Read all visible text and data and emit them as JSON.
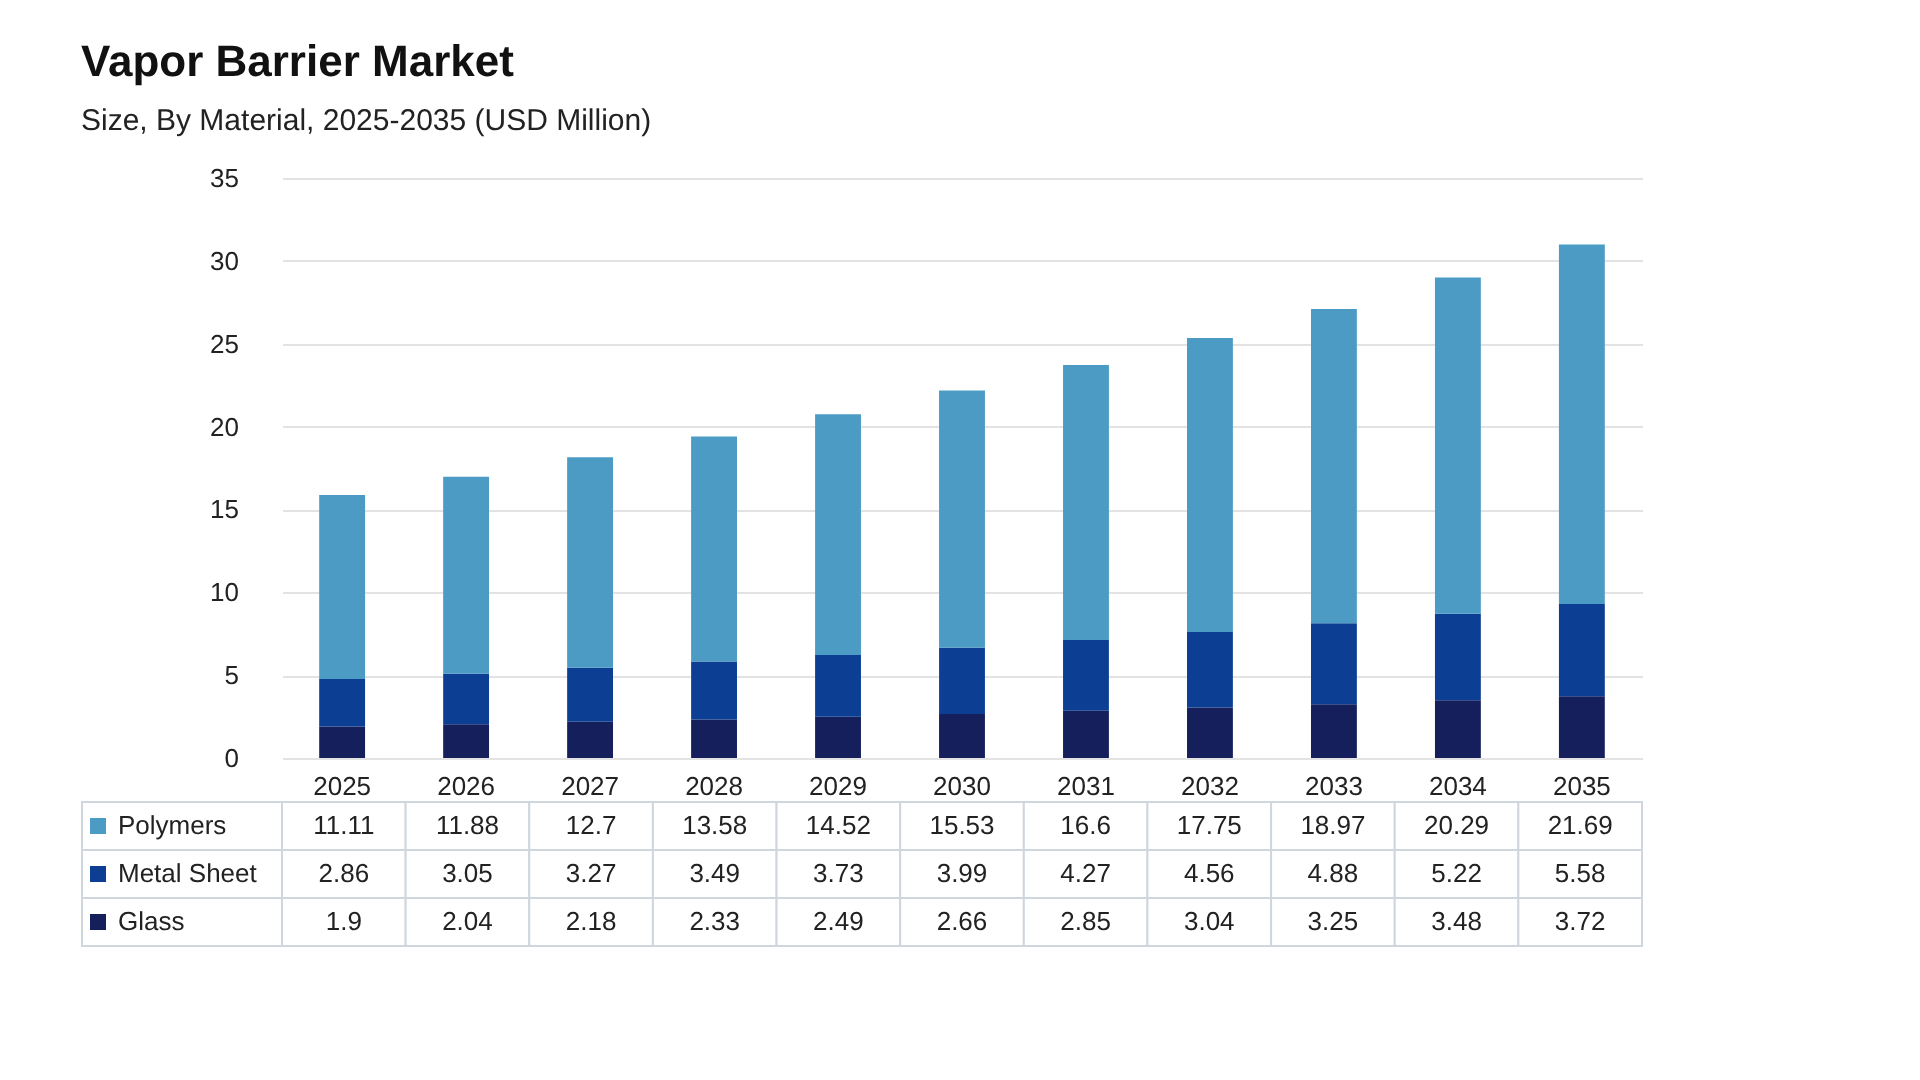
{
  "chart_data": {
    "type": "bar",
    "title": "Vapor Barrier Market",
    "subtitle": "Size, By Material, 2025-2035 (USD Million)",
    "categories": [
      "2025",
      "2026",
      "2027",
      "2028",
      "2029",
      "2030",
      "2031",
      "2032",
      "2033",
      "2034",
      "2035"
    ],
    "stacked": true,
    "data_labels": true,
    "grid": "y",
    "legend": "bottom",
    "ylim": [
      0,
      35
    ],
    "yticks": [
      0,
      5,
      10,
      15,
      20,
      25,
      30,
      35
    ],
    "series": [
      {
        "name": "Glass",
        "color": "#141f5c",
        "values": [
          1.9,
          2.04,
          2.18,
          2.33,
          2.49,
          2.66,
          2.85,
          3.04,
          3.25,
          3.48,
          3.72
        ]
      },
      {
        "name": "Metal Sheet",
        "color": "#0c3f93",
        "values": [
          2.86,
          3.05,
          3.27,
          3.49,
          3.73,
          3.99,
          4.27,
          4.56,
          4.88,
          5.22,
          5.58
        ]
      },
      {
        "name": "Polymers",
        "color": "#4b9bc4",
        "values": [
          11.11,
          11.88,
          12.7,
          13.58,
          14.52,
          15.53,
          16.6,
          17.75,
          18.97,
          20.29,
          21.69
        ]
      }
    ]
  }
}
